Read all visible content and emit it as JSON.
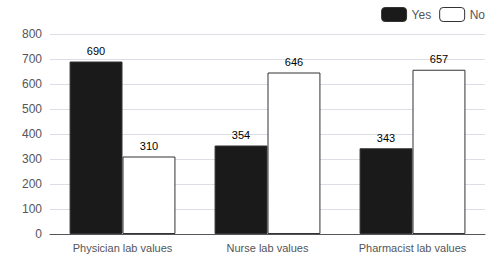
{
  "chart_data": {
    "type": "bar",
    "categories": [
      "Physician lab values",
      "Nurse lab values",
      "Pharmacist lab values"
    ],
    "series": [
      {
        "name": "Yes",
        "color": "#1a1a1a",
        "values": [
          690,
          354,
          343
        ]
      },
      {
        "name": "No",
        "color": "#ffffff",
        "values": [
          310,
          646,
          657
        ]
      }
    ],
    "ylim": [
      0,
      800
    ],
    "yticks": [
      0,
      100,
      200,
      300,
      400,
      500,
      600,
      700,
      800
    ],
    "grid": true,
    "legend": "upper right",
    "data_labels": true
  }
}
